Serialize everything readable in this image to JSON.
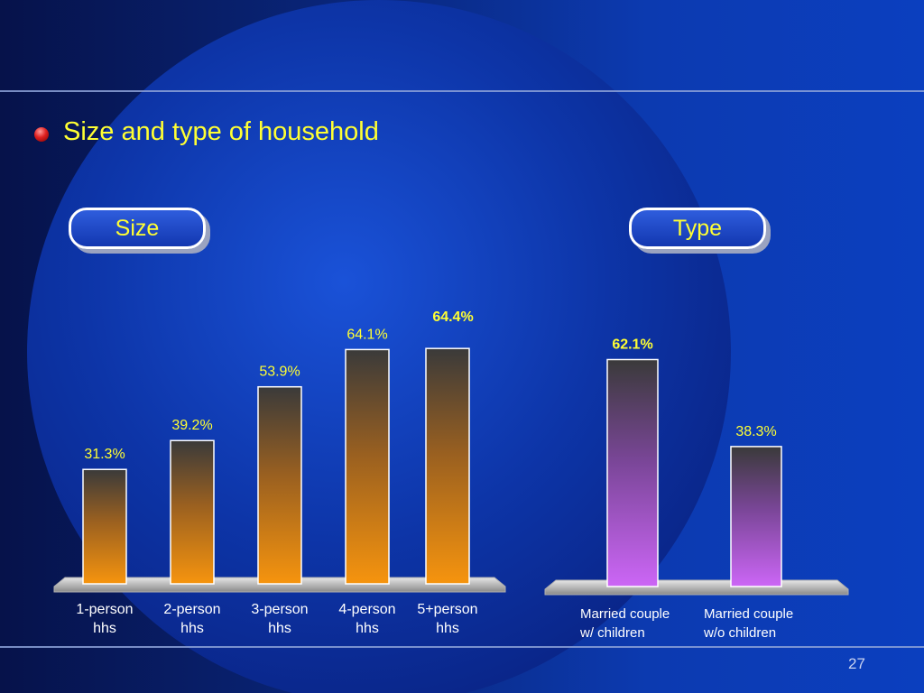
{
  "slide": {
    "title": "Size and type of household",
    "page_number": "27",
    "colors": {
      "title": "#ffff33",
      "background": "#0a2a85"
    }
  },
  "chart_data": [
    {
      "type": "bar",
      "title": "Size",
      "categories": [
        "1-person\nhhs",
        "2-person\nhhs",
        "3-person\nhhs",
        "4-person\nhhs",
        "5+person\nhhs"
      ],
      "values": [
        31.3,
        39.2,
        53.9,
        64.1,
        64.4
      ],
      "value_labels": [
        "31.3%",
        "39.2%",
        "53.9%",
        "64.1%",
        "64.4%"
      ],
      "bold_labels": [
        false,
        false,
        false,
        false,
        true
      ],
      "bar_color": "#f39018",
      "ylim": [
        0,
        100
      ]
    },
    {
      "type": "bar",
      "title": "Type",
      "categories": [
        "Married couple\nw/ children",
        "Married couple\nw/o children"
      ],
      "values": [
        62.1,
        38.3
      ],
      "value_labels": [
        "62.1%",
        "38.3%"
      ],
      "bold_labels": [
        true,
        false
      ],
      "bar_color": "#c860f0",
      "ylim": [
        0,
        100
      ]
    }
  ]
}
